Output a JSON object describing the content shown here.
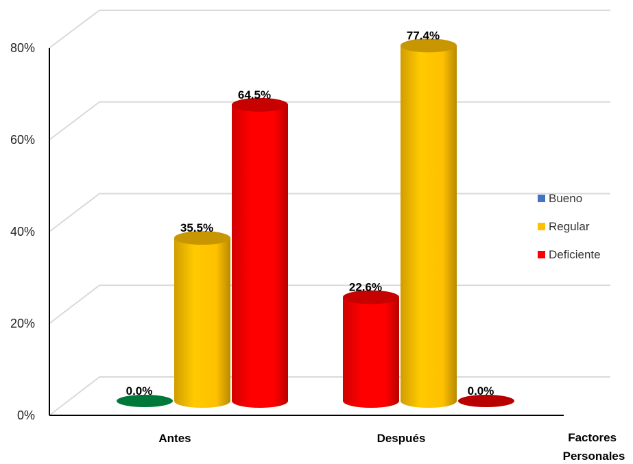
{
  "chart_data": {
    "type": "bar",
    "style": "3d-cylinder",
    "categories": [
      "Antes",
      "Después"
    ],
    "series": [
      {
        "name": "Bueno",
        "color": "#4472C4",
        "values": [
          0.0,
          22.6
        ],
        "labels": [
          "0.0%",
          "22.6%"
        ]
      },
      {
        "name": "Regular",
        "color": "#FFC000",
        "values": [
          35.5,
          77.4
        ],
        "labels": [
          "35.5%",
          "77.4%"
        ]
      },
      {
        "name": "Deficiente",
        "color": "#FF0000",
        "values": [
          64.5,
          0.0
        ],
        "labels": [
          "64.5%",
          "0.0%"
        ]
      }
    ],
    "bar_colors": [
      [
        "#00A650",
        "#FF0000"
      ],
      [
        "#FFC000",
        "#FFC000"
      ],
      [
        "#FF0000",
        "#FF0000"
      ]
    ],
    "yticks": [
      "0%",
      "20%",
      "40%",
      "60%",
      "80%"
    ],
    "ylim": [
      0,
      80
    ],
    "x_axis_title": [
      "Factores",
      "Personales"
    ],
    "legend_position": "right",
    "grid": true
  }
}
